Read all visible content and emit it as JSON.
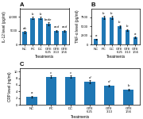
{
  "chart_data": [
    {
      "type": "bar",
      "title": "A",
      "xlabel": "Treatments",
      "ylabel": "IL-12 level (pg/ml)",
      "categories": [
        "NC",
        "PC",
        "DC",
        "GTE\n6.25",
        "GTE\n3.13",
        "GTE\n1.56"
      ],
      "values": [
        4500,
        9500,
        9500,
        7500,
        5000,
        5000
      ],
      "errors": [
        350,
        450,
        450,
        550,
        280,
        280
      ],
      "annotations": [
        "ab",
        "b",
        "b",
        "bcde",
        "acd",
        "acd"
      ],
      "ylim": [
        0,
        13000
      ],
      "yticks": [
        0,
        5000,
        10000
      ]
    },
    {
      "type": "bar",
      "title": "B",
      "xlabel": "Treatments",
      "ylabel": "TNF-α level (pg/ml)",
      "categories": [
        "NC",
        "PC",
        "DC",
        "GTE\n6.25",
        "GTE\n3.13",
        "GTE\n1.56"
      ],
      "values": [
        1500,
        7500,
        7500,
        5000,
        4000,
        2000
      ],
      "errors": [
        180,
        380,
        380,
        380,
        280,
        280
      ],
      "annotations": [
        "a",
        "b",
        "b",
        "b",
        "b",
        "a"
      ],
      "ylim": [
        0,
        10000
      ],
      "yticks": [
        0,
        2500,
        5000,
        7500
      ]
    },
    {
      "type": "bar",
      "title": "C",
      "xlabel": "Treatments",
      "ylabel": "CRP level (ng/ml)",
      "categories": [
        "NC",
        "PC",
        "DC",
        "GTE\n6.25",
        "GTE\n3.13",
        "GTE\n1.56"
      ],
      "values": [
        2.5,
        8.5,
        8.5,
        7.0,
        5.8,
        4.6
      ],
      "errors": [
        0.25,
        0.35,
        0.35,
        0.45,
        0.28,
        0.28
      ],
      "annotations": [
        "a",
        "c",
        "c",
        "d",
        "d",
        "b"
      ],
      "ylim": [
        0,
        11
      ],
      "yticks": [
        0,
        2,
        4,
        6,
        8,
        10
      ]
    }
  ]
}
